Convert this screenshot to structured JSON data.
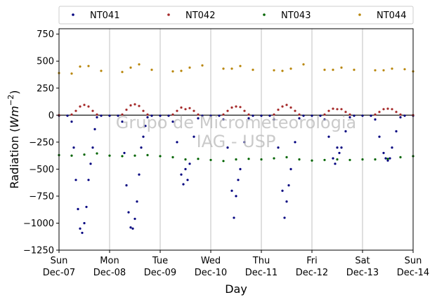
{
  "chart_data": {
    "type": "scatter",
    "xlabel": "Day",
    "ylabel": "Radiation (Wm⁻²)",
    "ylabel_parts": {
      "main": "Radiation (",
      "italic": "Wm",
      "sup": "−2",
      "close": ")"
    },
    "ylim": [
      -1250,
      800
    ],
    "yticks": [
      -1250,
      -1000,
      -750,
      -500,
      -250,
      0,
      250,
      500,
      750
    ],
    "ytick_labels": [
      "−1250",
      "−1000",
      "−750",
      "−500",
      "−250",
      "0",
      "250",
      "500",
      "750"
    ],
    "xlim": [
      "2014-12-07",
      "2014-12-14"
    ],
    "xticks": [
      {
        "day": "Sun",
        "date": "Dec-07"
      },
      {
        "day": "Mon",
        "date": "Dec-08"
      },
      {
        "day": "Tue",
        "date": "Dec-09"
      },
      {
        "day": "Wed",
        "date": "Dec-10"
      },
      {
        "day": "Thu",
        "date": "Dec-11"
      },
      {
        "day": "Fri",
        "date": "Dec-12"
      },
      {
        "day": "Sat",
        "date": "Dec-13"
      },
      {
        "day": "Sun",
        "date": "Dec-14"
      }
    ],
    "grid": "vertical",
    "legend_position": "top",
    "watermark": [
      "Grupo de Micrometeorologia",
      "IAG - USP"
    ],
    "series": [
      {
        "name": "NT041",
        "color": "#00007f",
        "x": [
          "2014-12-07 00:00",
          "2014-12-07 04:00",
          "2014-12-07 06:00",
          "2014-12-07 07:00",
          "2014-12-07 08:00",
          "2014-12-07 09:00",
          "2014-12-07 10:00",
          "2014-12-07 11:00",
          "2014-12-07 12:00",
          "2014-12-07 13:00",
          "2014-12-07 14:00",
          "2014-12-07 15:00",
          "2014-12-07 16:00",
          "2014-12-07 17:00",
          "2014-12-07 18:00",
          "2014-12-07 20:00",
          "2014-12-08 00:00",
          "2014-12-08 04:00",
          "2014-12-08 06:00",
          "2014-12-08 07:00",
          "2014-12-08 08:00",
          "2014-12-08 09:00",
          "2014-12-08 10:00",
          "2014-12-08 11:00",
          "2014-12-08 12:00",
          "2014-12-08 13:00",
          "2014-12-08 14:00",
          "2014-12-08 15:00",
          "2014-12-08 16:00",
          "2014-12-08 17:00",
          "2014-12-08 18:00",
          "2014-12-08 20:00",
          "2014-12-09 00:00",
          "2014-12-09 04:00",
          "2014-12-09 06:00",
          "2014-12-09 08:00",
          "2014-12-09 10:00",
          "2014-12-09 11:00",
          "2014-12-09 12:00",
          "2014-12-09 13:00",
          "2014-12-09 14:00",
          "2014-12-09 16:00",
          "2014-12-09 18:00",
          "2014-12-09 20:00",
          "2014-12-10 00:00",
          "2014-12-10 04:00",
          "2014-12-10 06:00",
          "2014-12-10 08:00",
          "2014-12-10 10:00",
          "2014-12-10 11:00",
          "2014-12-10 12:00",
          "2014-12-10 13:00",
          "2014-12-10 14:00",
          "2014-12-10 16:00",
          "2014-12-10 18:00",
          "2014-12-10 20:00",
          "2014-12-11 00:00",
          "2014-12-11 04:00",
          "2014-12-11 06:00",
          "2014-12-11 08:00",
          "2014-12-11 10:00",
          "2014-12-11 11:00",
          "2014-12-11 12:00",
          "2014-12-11 13:00",
          "2014-12-11 14:00",
          "2014-12-11 16:00",
          "2014-12-11 18:00",
          "2014-12-11 20:00",
          "2014-12-12 00:00",
          "2014-12-12 04:00",
          "2014-12-12 06:00",
          "2014-12-12 08:00",
          "2014-12-12 10:00",
          "2014-12-12 11:00",
          "2014-12-12 12:00",
          "2014-12-12 13:00",
          "2014-12-12 14:00",
          "2014-12-12 16:00",
          "2014-12-12 18:00",
          "2014-12-12 20:00",
          "2014-12-13 00:00",
          "2014-12-13 04:00",
          "2014-12-13 06:00",
          "2014-12-13 08:00",
          "2014-12-13 10:00",
          "2014-12-13 11:00",
          "2014-12-13 12:00",
          "2014-12-13 13:00",
          "2014-12-13 14:00",
          "2014-12-13 16:00",
          "2014-12-13 18:00",
          "2014-12-13 20:00",
          "2014-12-14 00:00"
        ],
        "y": [
          -5,
          -5,
          -60,
          -300,
          -600,
          -870,
          -1050,
          -1090,
          -1000,
          -850,
          -600,
          -450,
          -300,
          -130,
          -20,
          -5,
          -5,
          -5,
          -60,
          -350,
          -650,
          -900,
          -1040,
          -1050,
          -960,
          -800,
          -550,
          -300,
          -200,
          -100,
          -20,
          -5,
          -5,
          -5,
          -60,
          -250,
          -550,
          -640,
          -500,
          -600,
          -450,
          -200,
          -30,
          -5,
          -5,
          -5,
          -40,
          -300,
          -700,
          -950,
          -750,
          -600,
          -500,
          -250,
          -30,
          -5,
          -5,
          -5,
          -40,
          -300,
          -700,
          -950,
          -800,
          -650,
          -500,
          -250,
          -30,
          -5,
          -5,
          -5,
          -40,
          -200,
          -400,
          -450,
          -300,
          -350,
          -300,
          -150,
          -20,
          -5,
          -5,
          -5,
          -40,
          -200,
          -350,
          -400,
          -420,
          -400,
          -300,
          -150,
          -20,
          -5,
          -5
        ]
      },
      {
        "name": "NT042",
        "color": "#a52a2a",
        "x": [
          "2014-12-07 00:00",
          "2014-12-07 06:00",
          "2014-12-07 08:00",
          "2014-12-07 10:00",
          "2014-12-07 12:00",
          "2014-12-07 14:00",
          "2014-12-07 16:00",
          "2014-12-07 18:00",
          "2014-12-08 06:00",
          "2014-12-08 08:00",
          "2014-12-08 10:00",
          "2014-12-08 12:00",
          "2014-12-08 14:00",
          "2014-12-08 16:00",
          "2014-12-08 18:00",
          "2014-12-09 06:00",
          "2014-12-09 08:00",
          "2014-12-09 10:00",
          "2014-12-09 12:00",
          "2014-12-09 14:00",
          "2014-12-09 16:00",
          "2014-12-09 18:00",
          "2014-12-10 06:00",
          "2014-12-10 08:00",
          "2014-12-10 10:00",
          "2014-12-10 12:00",
          "2014-12-10 14:00",
          "2014-12-10 16:00",
          "2014-12-10 18:00",
          "2014-12-11 06:00",
          "2014-12-11 08:00",
          "2014-12-11 10:00",
          "2014-12-11 12:00",
          "2014-12-11 14:00",
          "2014-12-11 16:00",
          "2014-12-11 18:00",
          "2014-12-12 06:00",
          "2014-12-12 08:00",
          "2014-12-12 10:00",
          "2014-12-12 12:00",
          "2014-12-12 14:00",
          "2014-12-12 16:00",
          "2014-12-12 18:00",
          "2014-12-13 06:00",
          "2014-12-13 08:00",
          "2014-12-13 10:00",
          "2014-12-13 12:00",
          "2014-12-13 14:00",
          "2014-12-13 16:00",
          "2014-12-13 18:00",
          "2014-12-14 00:00"
        ],
        "y": [
          0,
          5,
          40,
          80,
          95,
          80,
          40,
          5,
          5,
          50,
          90,
          100,
          85,
          40,
          5,
          5,
          40,
          70,
          55,
          65,
          40,
          5,
          5,
          40,
          70,
          80,
          75,
          40,
          5,
          5,
          50,
          80,
          95,
          70,
          40,
          5,
          5,
          40,
          60,
          55,
          55,
          30,
          5,
          5,
          30,
          55,
          60,
          55,
          30,
          5,
          0
        ]
      },
      {
        "name": "NT043",
        "color": "#006400",
        "x": [
          "2014-12-07 00:00",
          "2014-12-07 06:00",
          "2014-12-07 12:00",
          "2014-12-07 18:00",
          "2014-12-08 00:00",
          "2014-12-08 06:00",
          "2014-12-08 12:00",
          "2014-12-08 18:00",
          "2014-12-09 00:00",
          "2014-12-09 06:00",
          "2014-12-09 12:00",
          "2014-12-09 18:00",
          "2014-12-10 00:00",
          "2014-12-10 06:00",
          "2014-12-10 12:00",
          "2014-12-10 18:00",
          "2014-12-11 00:00",
          "2014-12-11 06:00",
          "2014-12-11 12:00",
          "2014-12-11 18:00",
          "2014-12-12 00:00",
          "2014-12-12 06:00",
          "2014-12-12 12:00",
          "2014-12-12 18:00",
          "2014-12-13 00:00",
          "2014-12-13 06:00",
          "2014-12-13 12:00",
          "2014-12-13 18:00",
          "2014-12-14 00:00"
        ],
        "y": [
          -370,
          -375,
          -365,
          -355,
          -375,
          -380,
          -375,
          -370,
          -380,
          -390,
          -410,
          -405,
          -415,
          -425,
          -410,
          -405,
          -410,
          -400,
          -390,
          -410,
          -420,
          -415,
          -410,
          -415,
          -410,
          -410,
          -405,
          -390,
          -380
        ]
      },
      {
        "name": "NT044",
        "color": "#b8860b",
        "x": [
          "2014-12-07 00:00",
          "2014-12-07 06:00",
          "2014-12-07 10:00",
          "2014-12-07 14:00",
          "2014-12-07 20:00",
          "2014-12-08 06:00",
          "2014-12-08 10:00",
          "2014-12-08 14:00",
          "2014-12-08 20:00",
          "2014-12-09 06:00",
          "2014-12-09 10:00",
          "2014-12-09 14:00",
          "2014-12-09 20:00",
          "2014-12-10 06:00",
          "2014-12-10 10:00",
          "2014-12-10 14:00",
          "2014-12-10 20:00",
          "2014-12-11 06:00",
          "2014-12-11 10:00",
          "2014-12-11 14:00",
          "2014-12-11 20:00",
          "2014-12-12 06:00",
          "2014-12-12 10:00",
          "2014-12-12 14:00",
          "2014-12-12 20:00",
          "2014-12-13 06:00",
          "2014-12-13 10:00",
          "2014-12-13 14:00",
          "2014-12-13 20:00",
          "2014-12-14 00:00"
        ],
        "y": [
          390,
          385,
          450,
          455,
          410,
          400,
          440,
          470,
          420,
          405,
          410,
          440,
          460,
          430,
          430,
          455,
          420,
          415,
          410,
          430,
          470,
          420,
          420,
          440,
          420,
          415,
          415,
          430,
          425,
          405
        ]
      }
    ]
  }
}
